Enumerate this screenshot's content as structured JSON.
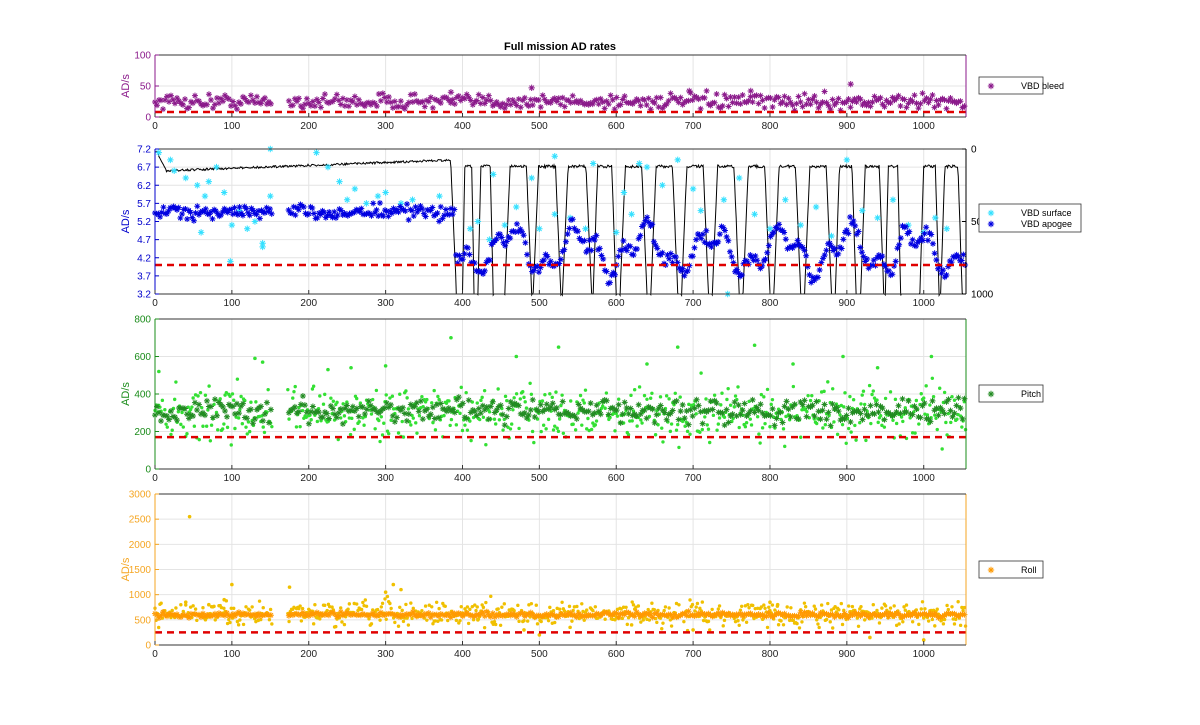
{
  "figure": {
    "title": "Full mission AD rates"
  },
  "chart_data": [
    {
      "type": "scatter",
      "title": "Full mission AD rates",
      "ylabel": "AD/s",
      "xlim": [
        0,
        1055
      ],
      "ylim": [
        0,
        100
      ],
      "xticks": [
        0,
        100,
        200,
        300,
        400,
        500,
        600,
        700,
        800,
        900,
        1000
      ],
      "yticks": [
        0,
        50,
        100
      ],
      "grid": true,
      "axis_color": "#8b1a8b",
      "legend_position": "right",
      "gaps": [
        [
          152,
          172
        ]
      ],
      "series": [
        {
          "name": "VBD bleed",
          "marker": "asterisk",
          "color": "#8b1a8b",
          "x_range": [
            0,
            1055
          ],
          "level": 25,
          "noise": 6,
          "spikes": [
            [
              490,
              47
            ],
            [
              905,
              53
            ],
            [
              385,
              40
            ],
            [
              695,
              42
            ],
            [
              775,
              42
            ]
          ]
        }
      ],
      "threshold": {
        "y": 8,
        "color": "#e00000",
        "style": "dashed"
      }
    },
    {
      "type": "scatter",
      "ylabel": "AD/s",
      "xlim": [
        0,
        1055
      ],
      "ylim": [
        3.2,
        7.2
      ],
      "xticks": [
        0,
        100,
        200,
        300,
        400,
        500,
        600,
        700,
        800,
        900,
        1000
      ],
      "yticks": [
        3.2,
        3.7,
        4.2,
        4.7,
        5.2,
        5.7,
        6.2,
        6.7,
        7.2
      ],
      "y2lim": [
        0,
        1000
      ],
      "y2ticks": [
        0,
        500,
        1000
      ],
      "y2_reversed": true,
      "grid": true,
      "axis_color": "#0000cc",
      "legend_position": "right",
      "series": [
        {
          "name": "VBD surface",
          "marker": "asterisk",
          "color": "#33e0ff",
          "points": [
            [
              5,
              7.1
            ],
            [
              25,
              6.6
            ],
            [
              40,
              6.4
            ],
            [
              55,
              6.2
            ],
            [
              65,
              5.9
            ],
            [
              80,
              6.7
            ],
            [
              90,
              6.0
            ],
            [
              100,
              5.1
            ],
            [
              110,
              5.5
            ],
            [
              120,
              5.0
            ],
            [
              130,
              5.2
            ],
            [
              140,
              4.5
            ],
            [
              150,
              5.9
            ],
            [
              20,
              6.9
            ],
            [
              70,
              6.3
            ],
            [
              60,
              4.9
            ],
            [
              98,
              4.1
            ],
            [
              140,
              4.6
            ],
            [
              150,
              7.2
            ],
            [
              210,
              7.1
            ],
            [
              225,
              6.7
            ],
            [
              240,
              6.3
            ],
            [
              250,
              5.8
            ],
            [
              260,
              6.1
            ],
            [
              275,
              5.7
            ],
            [
              290,
              5.9
            ],
            [
              300,
              6.0
            ],
            [
              320,
              5.7
            ],
            [
              335,
              5.8
            ],
            [
              370,
              5.9
            ],
            [
              410,
              5.0
            ],
            [
              420,
              5.2
            ],
            [
              435,
              4.7
            ],
            [
              455,
              5.1
            ],
            [
              470,
              5.6
            ],
            [
              490,
              6.4
            ],
            [
              500,
              5.0
            ],
            [
              520,
              5.4
            ],
            [
              540,
              5.3
            ],
            [
              560,
              5.0
            ],
            [
              570,
              6.8
            ],
            [
              600,
              4.9
            ],
            [
              610,
              6.0
            ],
            [
              620,
              5.4
            ],
            [
              640,
              6.7
            ],
            [
              660,
              6.2
            ],
            [
              680,
              6.9
            ],
            [
              700,
              6.1
            ],
            [
              710,
              5.5
            ],
            [
              730,
              4.6
            ],
            [
              740,
              5.8
            ],
            [
              745,
              3.2
            ],
            [
              760,
              6.4
            ],
            [
              780,
              5.4
            ],
            [
              800,
              5.0
            ],
            [
              820,
              5.8
            ],
            [
              840,
              5.1
            ],
            [
              860,
              5.6
            ],
            [
              880,
              4.8
            ],
            [
              900,
              6.9
            ],
            [
              920,
              5.5
            ],
            [
              940,
              5.3
            ],
            [
              960,
              5.8
            ],
            [
              980,
              5.1
            ],
            [
              1000,
              4.9
            ],
            [
              1015,
              5.3
            ],
            [
              1030,
              5.0
            ],
            [
              440,
              6.5
            ],
            [
              520,
              7.0
            ],
            [
              630,
              6.8
            ]
          ]
        },
        {
          "name": "VBD apogee",
          "marker": "asterisk",
          "color": "#0000e0",
          "x_range": [
            0,
            1055
          ],
          "level": 5.45,
          "noise": 0.1
        }
      ],
      "secondary_line": {
        "color": "#000000",
        "x_range": [
          0,
          1055
        ],
        "note": "dive depth profile"
      },
      "threshold": {
        "y": 4.0,
        "color": "#e00000",
        "style": "dashed"
      }
    },
    {
      "type": "scatter",
      "ylabel": "AD/s",
      "xlim": [
        0,
        1055
      ],
      "ylim": [
        0,
        800
      ],
      "xticks": [
        0,
        100,
        200,
        300,
        400,
        500,
        600,
        700,
        800,
        900,
        1000
      ],
      "yticks": [
        0,
        200,
        400,
        600,
        800
      ],
      "grid": true,
      "axis_color": "#1a8c1a",
      "legend_position": "right",
      "series": [
        {
          "name": "Pitch",
          "marker": "asterisk",
          "color": "#228b22",
          "x_range": [
            0,
            1055
          ],
          "level": 310,
          "noise": 30
        }
      ],
      "dots": {
        "color": "#33e033",
        "x_range": [
          0,
          1055
        ],
        "level": 300,
        "noise": 70,
        "outliers": [
          [
            130,
            590
          ],
          [
            140,
            570
          ],
          [
            385,
            700
          ],
          [
            525,
            650
          ],
          [
            680,
            650
          ],
          [
            780,
            660
          ],
          [
            895,
            600
          ],
          [
            1010,
            600
          ],
          [
            640,
            560
          ],
          [
            470,
            600
          ],
          [
            830,
            560
          ],
          [
            940,
            540
          ],
          [
            5,
            520
          ],
          [
            225,
            530
          ],
          [
            255,
            540
          ],
          [
            300,
            550
          ]
        ]
      },
      "threshold": {
        "y": 170,
        "color": "#e00000",
        "style": "dashed"
      }
    },
    {
      "type": "scatter",
      "ylabel": "AD/s",
      "xlim": [
        0,
        1055
      ],
      "ylim": [
        0,
        3000
      ],
      "xticks": [
        0,
        100,
        200,
        300,
        400,
        500,
        600,
        700,
        800,
        900,
        1000
      ],
      "yticks": [
        0,
        500,
        1000,
        1500,
        2000,
        2500,
        3000
      ],
      "grid": true,
      "axis_color": "#f5a623",
      "legend_position": "right",
      "series": [
        {
          "name": "Roll",
          "marker": "asterisk",
          "color": "#ff9900",
          "x_range": [
            0,
            1055
          ],
          "level": 600,
          "noise": 25
        }
      ],
      "dots": {
        "color": "#f0c000",
        "x_range": [
          0,
          1055
        ],
        "level": 620,
        "noise": 120,
        "outliers": [
          [
            45,
            2550
          ],
          [
            100,
            1200
          ],
          [
            175,
            1150
          ],
          [
            300,
            1050
          ],
          [
            310,
            1200
          ],
          [
            320,
            1100
          ],
          [
            40,
            850
          ],
          [
            70,
            800
          ],
          [
            90,
            900
          ],
          [
            480,
            300
          ],
          [
            500,
            200
          ],
          [
            800,
            850
          ],
          [
            810,
            800
          ],
          [
            620,
            400
          ],
          [
            700,
            300
          ],
          [
            930,
            150
          ],
          [
            1000,
            100
          ],
          [
            420,
            500
          ],
          [
            540,
            350
          ]
        ]
      },
      "threshold": {
        "y": 250,
        "color": "#e00000",
        "style": "dashed"
      }
    }
  ]
}
